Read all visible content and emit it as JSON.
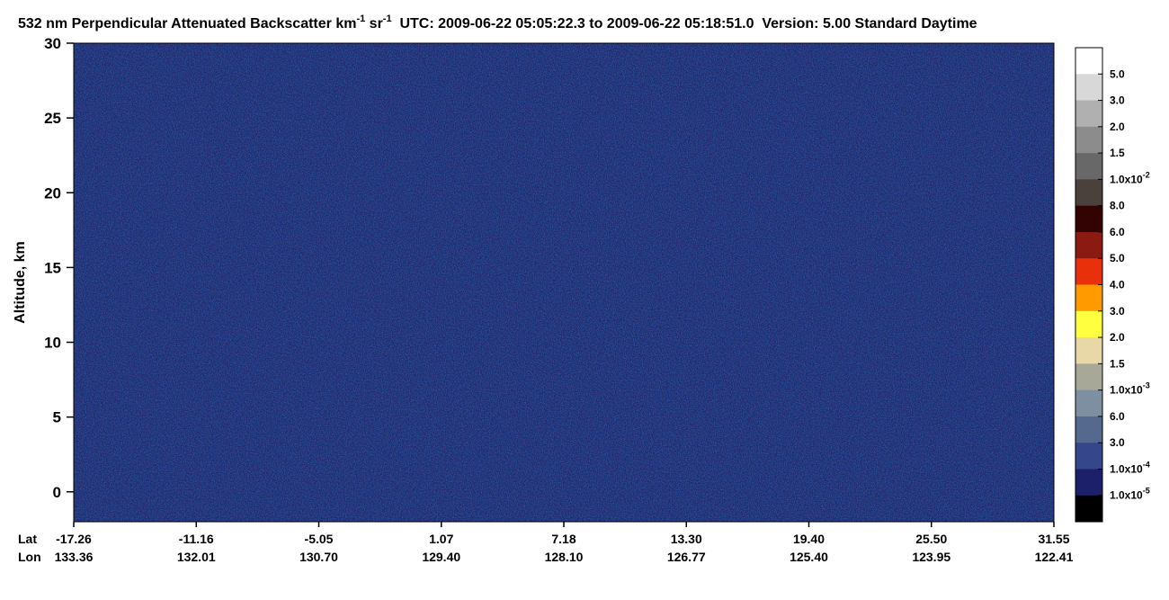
{
  "chart_data": {
    "type": "heatmap",
    "title_parts": [
      "532 nm Perpendicular Attenuated Backscatter km",
      "-1",
      " sr",
      "-1",
      "  UTC: 2009-06-22 05:05:22.3 to 2009-06-22 05:18:51.0  Version: 5.00 Standard Daytime"
    ],
    "ylabel": "Altitude, km",
    "ylim": [
      -2,
      30
    ],
    "yticks": [
      0,
      5,
      10,
      15,
      20,
      25,
      30
    ],
    "x_label_rows": [
      {
        "name": "Lat",
        "labels": [
          "-17.26",
          "-11.16",
          "-5.05",
          "1.07",
          "7.18",
          "13.30",
          "19.40",
          "25.50",
          "31.55"
        ]
      },
      {
        "name": "Lon",
        "labels": [
          "133.36",
          "132.01",
          "130.70",
          "129.40",
          "128.10",
          "126.77",
          "125.40",
          "123.95",
          "122.41"
        ]
      }
    ],
    "colorbar": {
      "colors": [
        "#ffffff",
        "#d8d8d8",
        "#b0b0b0",
        "#8c8c8c",
        "#686868",
        "#4a403c",
        "#330202",
        "#8a1a12",
        "#e8300a",
        "#ff9a00",
        "#ffff40",
        "#e8d8a8",
        "#a8a898",
        "#7f8fa2",
        "#55698f",
        "#35468a",
        "#1c1f6a",
        "#000000"
      ],
      "labels": [
        "5.0",
        "3.0",
        "2.0",
        "1.5",
        {
          "text": "1.0x10",
          "sup": "-2"
        },
        "8.0",
        "6.0",
        "5.0",
        "4.0",
        "3.0",
        "2.0",
        "1.5",
        {
          "text": "1.0x10",
          "sup": "-3"
        },
        "6.0",
        "3.0",
        {
          "text": "1.0x10",
          "sup": "-4"
        },
        {
          "text": "1.0x10",
          "sup": "-5"
        }
      ]
    }
  }
}
